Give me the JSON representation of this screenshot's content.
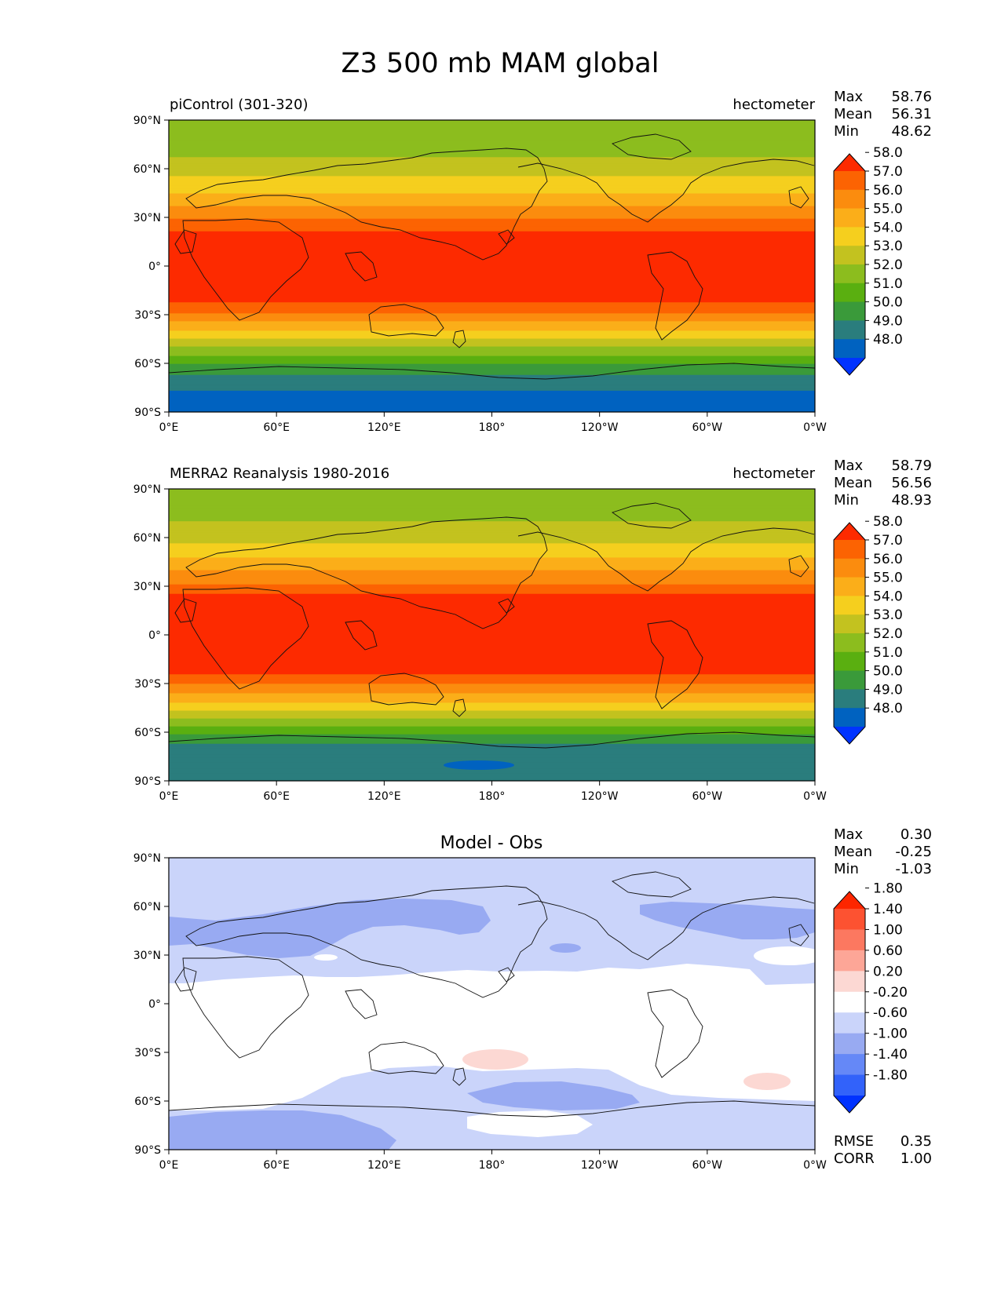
{
  "figure": {
    "title": "Z3 500 mb MAM global"
  },
  "axes": {
    "lat_ticks": [
      "90°N",
      "60°N",
      "30°N",
      "0°",
      "30°S",
      "60°S",
      "90°S"
    ],
    "lon_ticks": [
      "0°E",
      "60°E",
      "120°E",
      "180°",
      "120°W",
      "60°W",
      "0°W"
    ]
  },
  "stat_labels": {
    "max": "Max",
    "mean": "Mean",
    "min": "Min",
    "rmse": "RMSE",
    "corr": "CORR"
  },
  "colors": {
    "abs_bins": [
      "#0033ff",
      "#0062c0",
      "#2a7d7d",
      "#3a9a3a",
      "#5aaf10",
      "#8cbd1e",
      "#c3c21f",
      "#f5cf1e",
      "#fbae19",
      "#fb8c0e",
      "#fc6302",
      "#fd2a00"
    ],
    "diff_bins": [
      "#0032ff",
      "#3262fa",
      "#6588f7",
      "#98aaf2",
      "#cad4fa",
      "#ffffff",
      "#fcd8d3",
      "#fda697",
      "#fc7860",
      "#fd5231",
      "#fd2600"
    ]
  },
  "chart_data": [
    {
      "type": "heatmap",
      "panel_title_left": "piControl (301-320)",
      "panel_title_right": "hectometer",
      "stats": {
        "max": "58.76",
        "mean": "56.31",
        "min": "48.62"
      },
      "colorbar_levels": [
        "48.0",
        "49.0",
        "50.0",
        "51.0",
        "52.0",
        "53.0",
        "54.0",
        "55.0",
        "56.0",
        "57.0",
        "58.0"
      ],
      "xlim": [
        0,
        360
      ],
      "ylim": [
        -90,
        90
      ],
      "zonal_profile": {
        "lat": [
          90,
          75,
          60,
          45,
          30,
          25,
          20,
          0,
          -20,
          -25,
          -30,
          -40,
          -50,
          -60,
          -70,
          -80,
          -90
        ],
        "value": [
          52.0,
          52.5,
          53.5,
          55.0,
          56.8,
          57.6,
          58.2,
          58.4,
          58.2,
          57.7,
          56.8,
          55.0,
          53.0,
          51.0,
          49.5,
          48.8,
          48.6
        ]
      }
    },
    {
      "type": "heatmap",
      "panel_title_left": "MERRA2 Reanalysis 1980-2016",
      "panel_title_right": "hectometer",
      "stats": {
        "max": "58.79",
        "mean": "56.56",
        "min": "48.93"
      },
      "colorbar_levels": [
        "48.0",
        "49.0",
        "50.0",
        "51.0",
        "52.0",
        "53.0",
        "54.0",
        "55.0",
        "56.0",
        "57.0",
        "58.0"
      ],
      "xlim": [
        0,
        360
      ],
      "ylim": [
        -90,
        90
      ],
      "zonal_profile": {
        "lat": [
          90,
          75,
          60,
          45,
          30,
          25,
          20,
          0,
          -20,
          -25,
          -30,
          -40,
          -50,
          -60,
          -70,
          -80,
          -90
        ],
        "value": [
          52.2,
          52.7,
          53.6,
          55.3,
          57.2,
          58.0,
          58.5,
          58.6,
          58.4,
          57.9,
          57.0,
          55.3,
          53.4,
          51.2,
          49.5,
          49.1,
          49.0
        ]
      }
    },
    {
      "type": "heatmap",
      "panel_title_center": "Model - Obs",
      "stats": {
        "max": "0.30",
        "mean": "-0.25",
        "min": "-1.03",
        "rmse": "0.35",
        "corr": "1.00"
      },
      "colorbar_levels": [
        "-1.80",
        "-1.40",
        "-1.00",
        "-0.60",
        "-0.20",
        "0.20",
        "0.60",
        "1.00",
        "1.40",
        "1.80"
      ],
      "xlim": [
        0,
        360
      ],
      "ylim": [
        -90,
        90
      ]
    }
  ]
}
